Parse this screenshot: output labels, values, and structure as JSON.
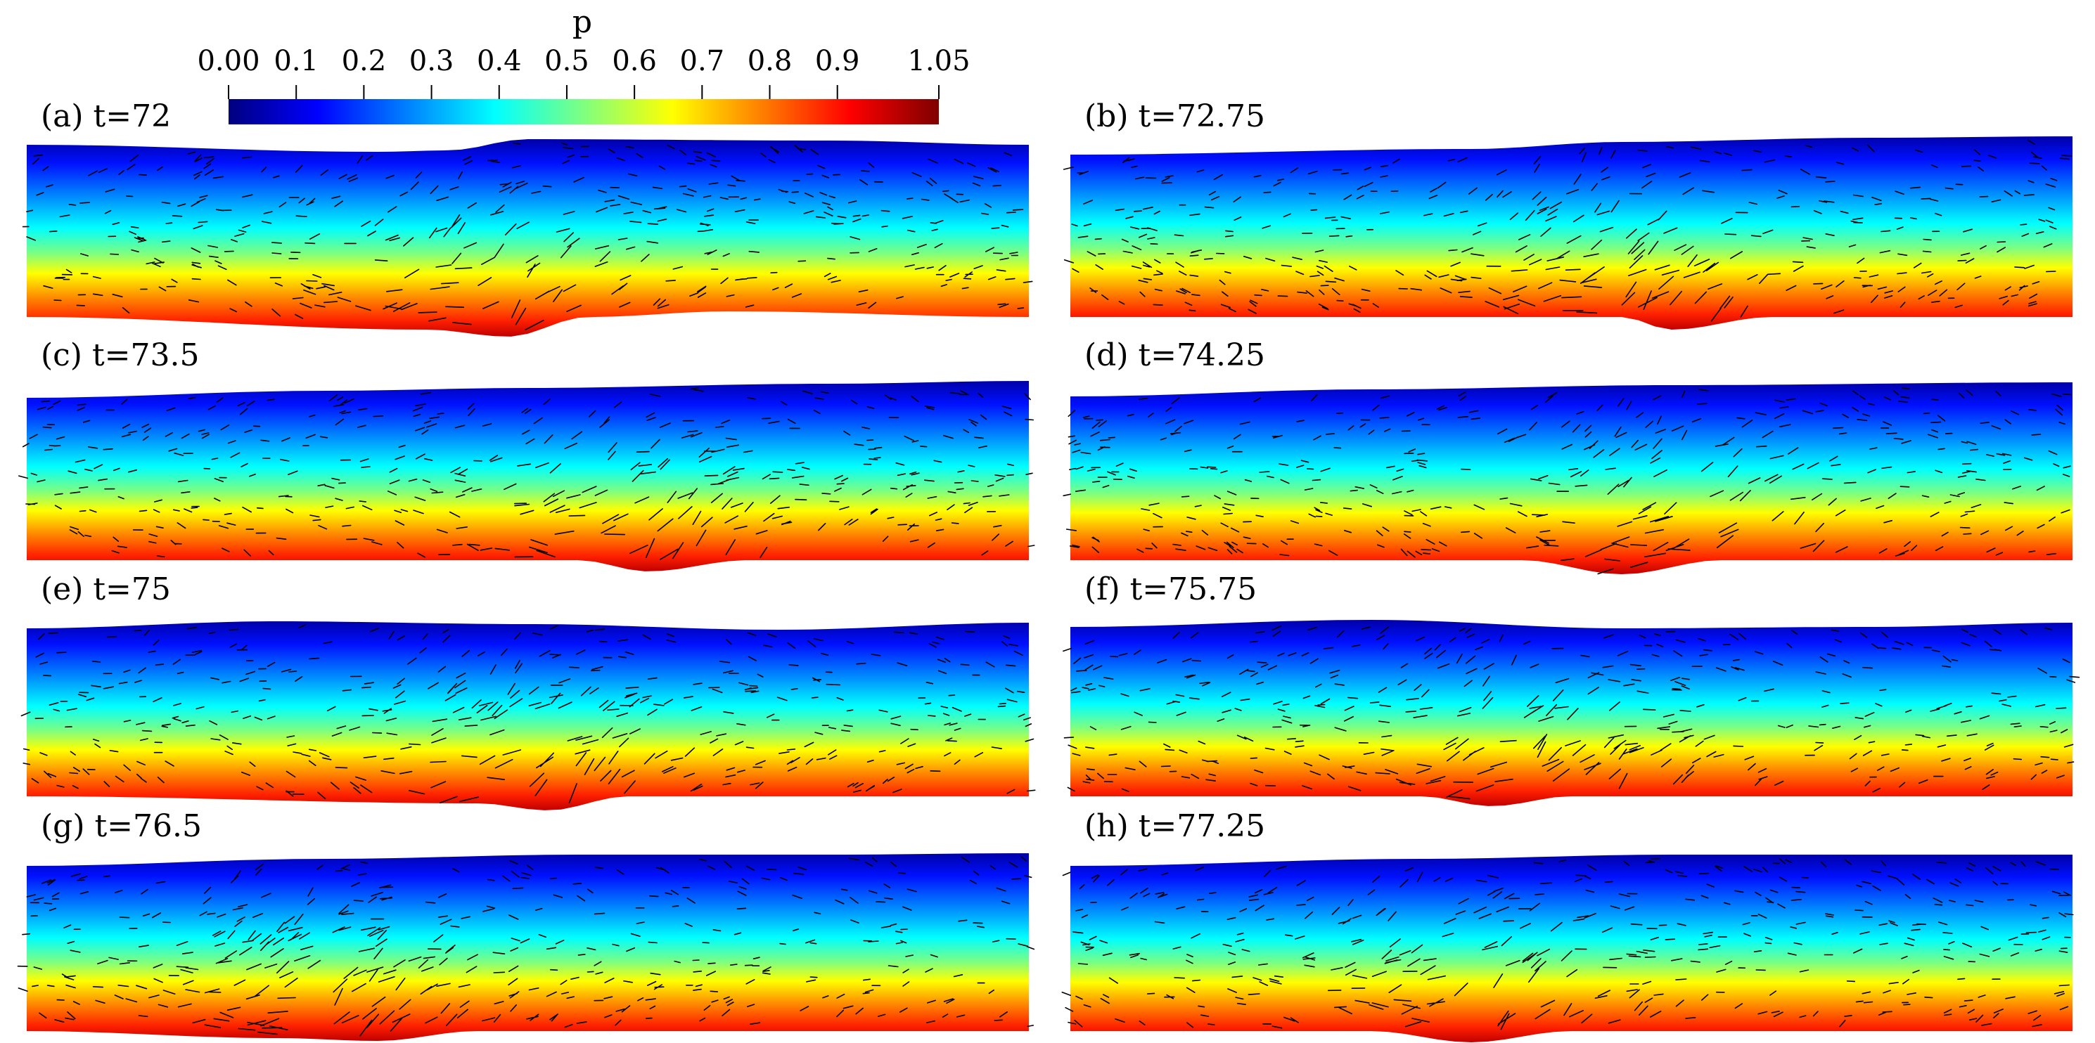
{
  "colorbar": {
    "variable": "p",
    "tick_labels": [
      "0.00",
      "0.1",
      "0.2",
      "0.3",
      "0.4",
      "0.5",
      "0.6",
      "0.7",
      "0.8",
      "0.9",
      "1.05"
    ],
    "tick_values": [
      0.0,
      0.1,
      0.2,
      0.3,
      0.4,
      0.5,
      0.6,
      0.7,
      0.8,
      0.9,
      1.05
    ],
    "range": [
      0.0,
      1.05
    ],
    "colormap": "jet",
    "colors": [
      "#00007f",
      "#0000ff",
      "#007fff",
      "#00ffff",
      "#7fff7f",
      "#ffff00",
      "#ff7f00",
      "#ff0000",
      "#7f0000"
    ]
  },
  "panels": [
    {
      "label": "(a) t=72"
    },
    {
      "label": "(b) t=72.75"
    },
    {
      "label": "(c) t=73.5"
    },
    {
      "label": "(d) t=74.25"
    },
    {
      "label": "(e) t=75"
    },
    {
      "label": "(f) t=75.75"
    },
    {
      "label": "(g) t=76.5"
    },
    {
      "label": "(h) t=77.25"
    }
  ],
  "arrow_color": "#000000"
}
